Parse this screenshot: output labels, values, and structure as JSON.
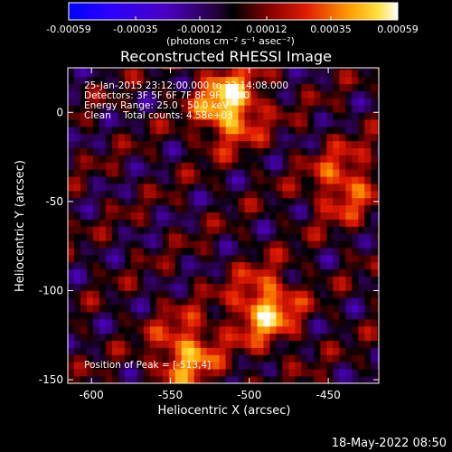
{
  "chart_data": {
    "type": "heatmap",
    "title": "Reconstructed RHESSI Image",
    "xlabel": "Heliocentric X (arcsec)",
    "ylabel": "Heliocentric Y (arcsec)",
    "xlim": [
      -615,
      -418
    ],
    "ylim": [
      -152,
      25
    ],
    "xticks": [
      -600,
      -550,
      -500,
      -450
    ],
    "yticks": [
      0,
      -50,
      -100,
      -150
    ],
    "colorbar": {
      "ticks": [
        "-0.00059",
        "-0.00035",
        "-0.00012",
        "0.00012",
        "0.00035",
        "0.00059"
      ],
      "unit_label": "(photons cm⁻² s⁻¹ asec⁻²)",
      "range": [
        -0.00059,
        0.00059
      ]
    },
    "annotations": {
      "time_range": "25-Jan-2015 23:12:00.000 to 23:14:08.000",
      "detectors": "Detectors: 3F 5F 6F 7F 8F 9F, Att 0",
      "energy": "Energy Range: 25.0 - 50.0 keV",
      "method": "Clean    Total counts: 4.58e+03",
      "peak": "Position of Peak = [-513,4]"
    },
    "sources": [
      {
        "x": -513,
        "y": 4,
        "value": 1.0
      },
      {
        "x": -490,
        "y": -110,
        "value": 0.85
      },
      {
        "x": -540,
        "y": -135,
        "value": 0.75
      },
      {
        "x": -440,
        "y": -40,
        "value": 0.6
      }
    ]
  },
  "footer": {
    "date": "18-May-2022 08:50"
  },
  "colors": {
    "background": "#000000",
    "text": "#ffffff"
  }
}
